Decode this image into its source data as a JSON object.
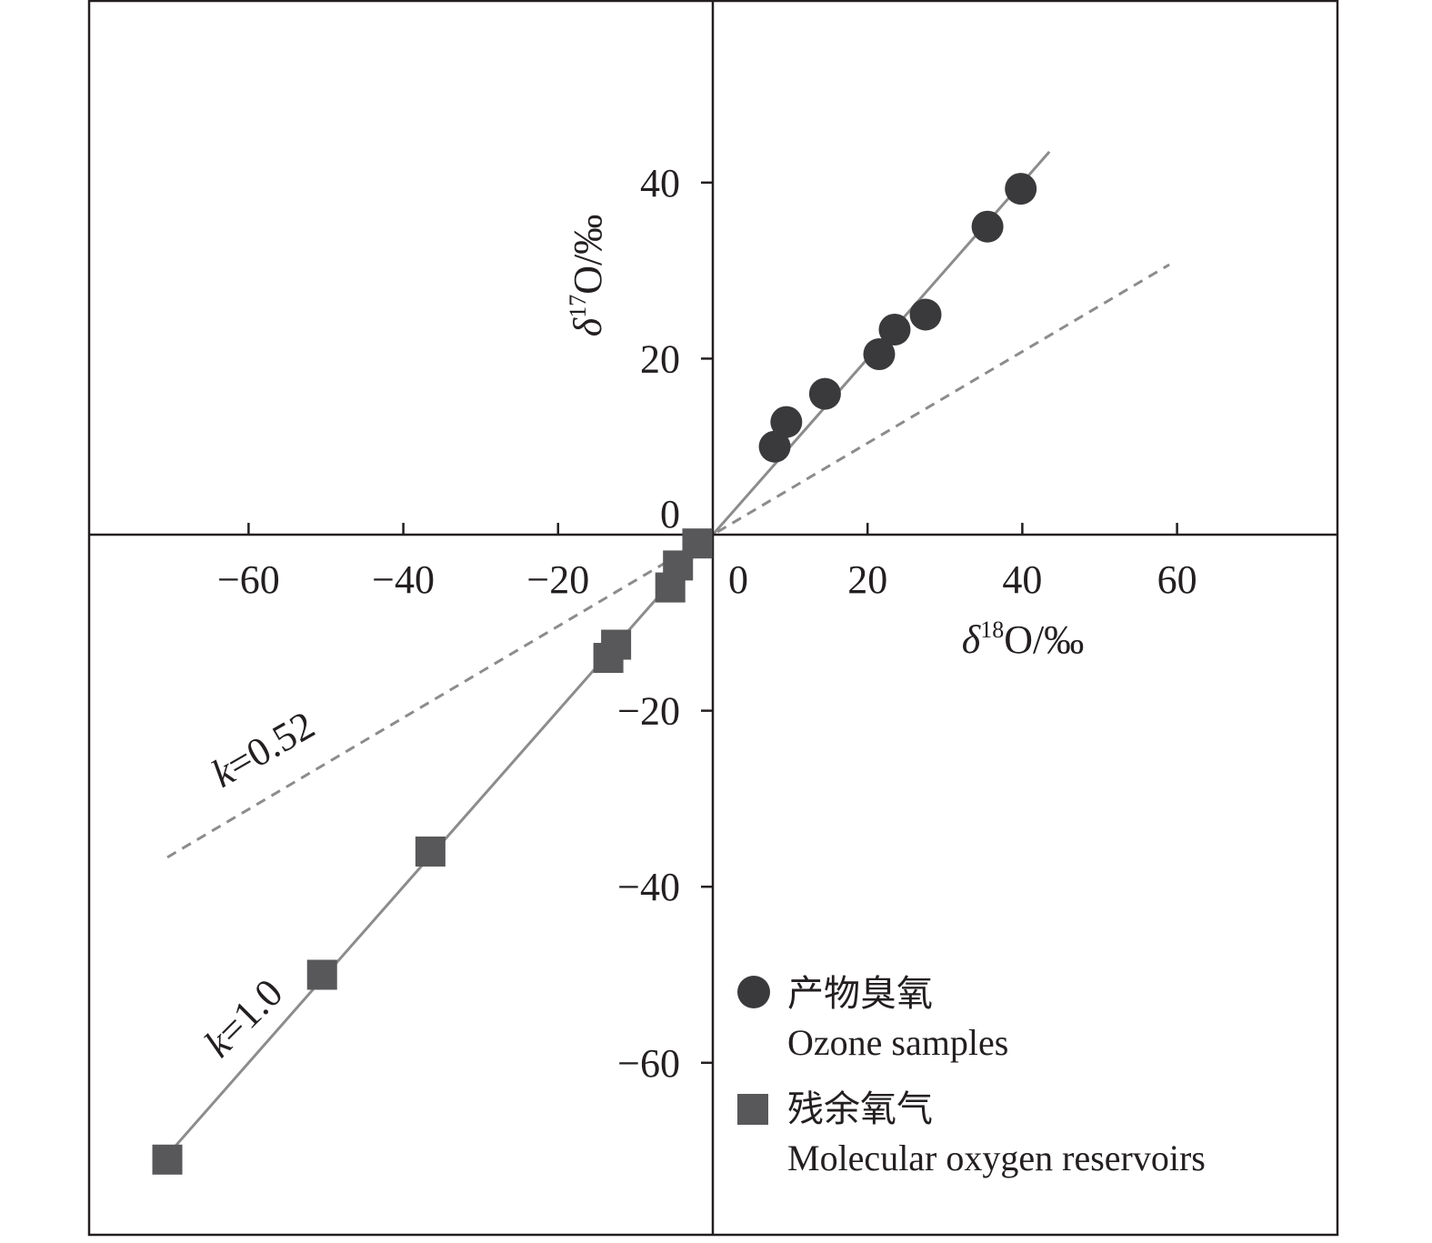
{
  "chart_data": {
    "type": "scatter",
    "xlim": [
      -80,
      80
    ],
    "ylim": [
      -80,
      60
    ],
    "x_ticks": [
      -60,
      -40,
      -20,
      0,
      20,
      40,
      60
    ],
    "y_ticks": [
      -60,
      -40,
      -20,
      0,
      20,
      40
    ],
    "x_tick_labels": [
      "−60",
      "−40",
      "−20",
      "0",
      "20",
      "40",
      "60"
    ],
    "y_tick_labels": [
      "−60",
      "−40",
      "−20",
      "0",
      "20",
      "40"
    ],
    "xlabel": {
      "delta": "δ",
      "sup": "18",
      "rest": "O/‰"
    },
    "ylabel": {
      "delta": "δ",
      "sup": "17",
      "rest": "O/‰"
    },
    "grid": false,
    "legend_position": "bottom-right",
    "series": [
      {
        "name": "产物臭氧",
        "name_en": "Ozone samples",
        "marker": "circle",
        "color": "#3a3a3c",
        "points": [
          [
            8,
            10
          ],
          [
            9.5,
            12.8
          ],
          [
            14.5,
            16
          ],
          [
            21.5,
            20.5
          ],
          [
            23.5,
            23.3
          ],
          [
            27.5,
            25
          ],
          [
            35.5,
            35
          ],
          [
            39.8,
            39.3
          ]
        ]
      },
      {
        "name": "残余氧气",
        "name_en": "Molecular oxygen reservoirs",
        "marker": "square",
        "color": "#58585a",
        "points": [
          [
            -70.5,
            -71
          ],
          [
            -50.5,
            -50
          ],
          [
            -36.5,
            -36
          ],
          [
            -12.5,
            -12.5
          ],
          [
            -13.5,
            -14
          ],
          [
            -5.5,
            -6
          ],
          [
            -4.5,
            -3.5
          ],
          [
            -2,
            -1
          ]
        ]
      }
    ],
    "lines": [
      {
        "label_k": "k",
        "label_rest": "=1.0",
        "slope": 1.0,
        "x_from": -70.5,
        "x_to": 43.5,
        "style": "solid",
        "color": "#8c8c8c"
      },
      {
        "label_k": "k",
        "label_rest": "=0.52",
        "slope": 0.52,
        "x_from": -70.5,
        "x_to": 59,
        "style": "dashed",
        "color": "#8c8c8c"
      }
    ]
  }
}
